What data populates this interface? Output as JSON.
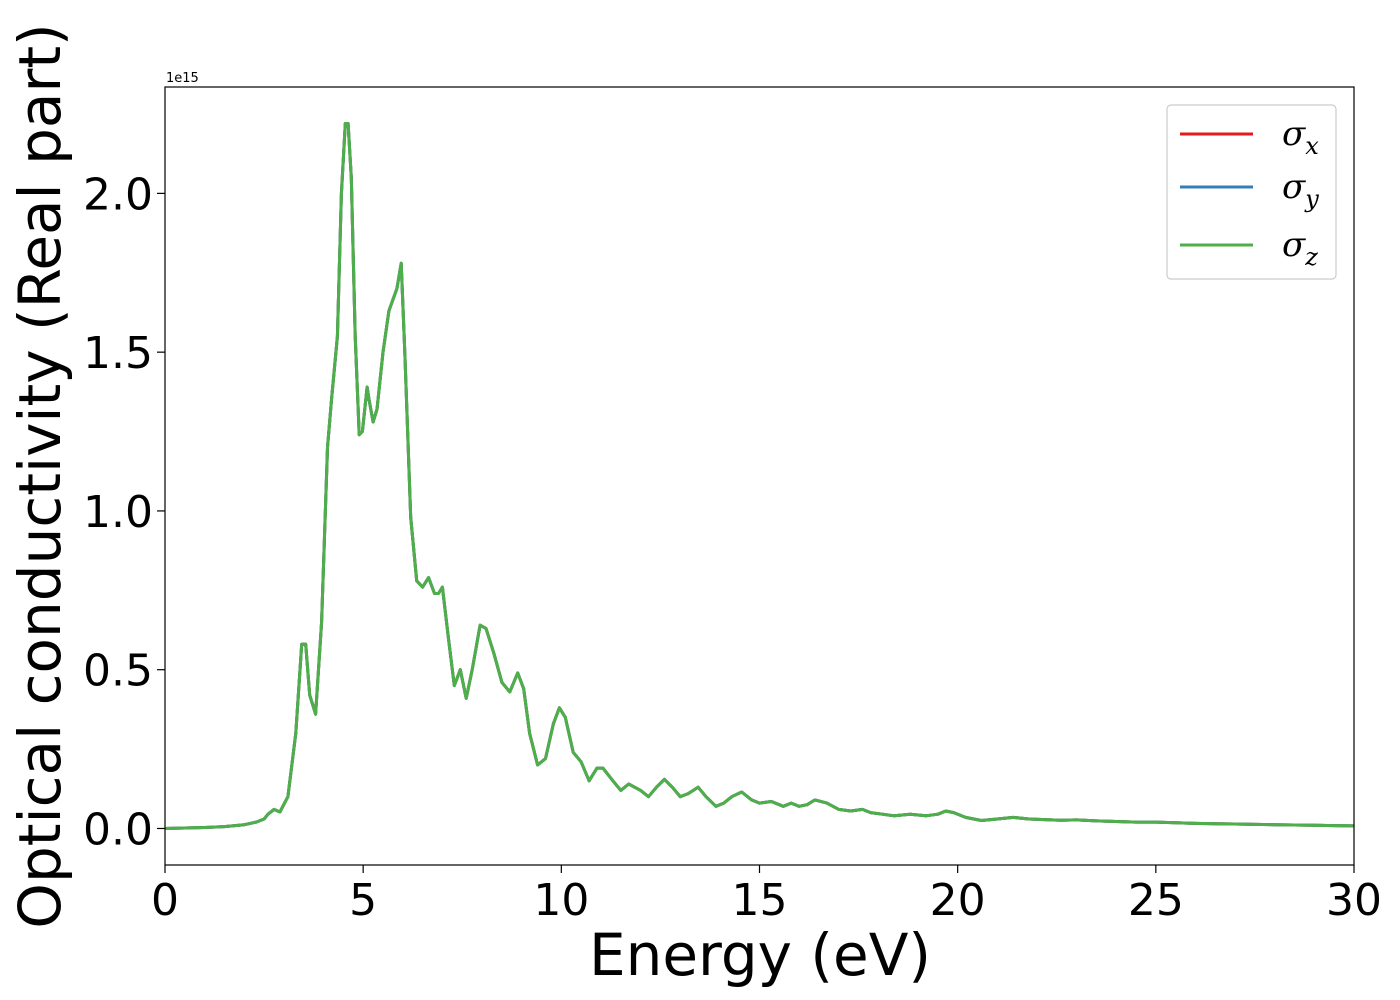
{
  "chart_data": {
    "type": "line",
    "xlabel": "Energy (eV)",
    "ylabel": "Optical conductivity (Real part)",
    "offset_text": "1e15",
    "xlim": [
      0,
      30
    ],
    "ylim": [
      -0.115,
      2.335
    ],
    "x_ticks": [
      0,
      5,
      10,
      15,
      20,
      25,
      30
    ],
    "x_tick_labels": [
      "0",
      "5",
      "10",
      "15",
      "20",
      "25",
      "30"
    ],
    "y_ticks": [
      0.0,
      0.5,
      1.0,
      1.5,
      2.0
    ],
    "y_tick_labels": [
      "0.0",
      "0.5",
      "1.0",
      "1.5",
      "2.0"
    ],
    "grid": false,
    "legend_position": "top-right",
    "x": [
      0,
      1,
      1.5,
      2,
      2.3,
      2.5,
      2.6,
      2.75,
      2.9,
      3.1,
      3.3,
      3.45,
      3.55,
      3.65,
      3.8,
      3.95,
      4.1,
      4.2,
      4.35,
      4.45,
      4.55,
      4.62,
      4.7,
      4.8,
      4.9,
      4.98,
      5.1,
      5.15,
      5.25,
      5.35,
      5.5,
      5.65,
      5.85,
      5.96,
      6.05,
      6.2,
      6.35,
      6.5,
      6.65,
      6.8,
      6.9,
      7.0,
      7.15,
      7.3,
      7.45,
      7.6,
      7.75,
      7.95,
      8.1,
      8.3,
      8.5,
      8.7,
      8.9,
      9.05,
      9.2,
      9.4,
      9.6,
      9.8,
      9.95,
      10.1,
      10.3,
      10.5,
      10.7,
      10.9,
      11.05,
      11.3,
      11.5,
      11.7,
      12.0,
      12.2,
      12.4,
      12.6,
      12.8,
      13.0,
      13.2,
      13.45,
      13.65,
      13.9,
      14.1,
      14.3,
      14.55,
      14.8,
      15.0,
      15.3,
      15.6,
      15.8,
      16.0,
      16.2,
      16.4,
      16.7,
      17.0,
      17.3,
      17.6,
      17.8,
      18.1,
      18.4,
      18.8,
      19.2,
      19.5,
      19.7,
      19.9,
      20.2,
      20.6,
      21.0,
      21.4,
      21.8,
      22.2,
      22.6,
      23.0,
      23.5,
      24.0,
      24.5,
      25.0,
      25.5,
      26.0,
      26.5,
      27.0,
      27.5,
      28.0,
      28.5,
      29.0,
      29.5,
      30.0
    ],
    "series": [
      {
        "name": "σx",
        "color": "#e41a1c",
        "y": [
          0.0,
          0.003,
          0.006,
          0.012,
          0.02,
          0.03,
          0.045,
          0.06,
          0.052,
          0.1,
          0.3,
          0.58,
          0.58,
          0.42,
          0.36,
          0.65,
          1.2,
          1.35,
          1.55,
          2.0,
          2.22,
          2.22,
          2.05,
          1.55,
          1.24,
          1.25,
          1.39,
          1.35,
          1.28,
          1.32,
          1.5,
          1.63,
          1.7,
          1.78,
          1.5,
          0.98,
          0.78,
          0.76,
          0.79,
          0.74,
          0.74,
          0.76,
          0.6,
          0.45,
          0.5,
          0.41,
          0.5,
          0.64,
          0.63,
          0.55,
          0.46,
          0.43,
          0.49,
          0.44,
          0.3,
          0.2,
          0.22,
          0.33,
          0.38,
          0.35,
          0.24,
          0.21,
          0.15,
          0.19,
          0.19,
          0.15,
          0.12,
          0.14,
          0.12,
          0.1,
          0.13,
          0.155,
          0.13,
          0.1,
          0.11,
          0.13,
          0.1,
          0.07,
          0.08,
          0.1,
          0.115,
          0.09,
          0.08,
          0.085,
          0.07,
          0.08,
          0.07,
          0.075,
          0.09,
          0.08,
          0.06,
          0.055,
          0.06,
          0.05,
          0.045,
          0.04,
          0.045,
          0.04,
          0.045,
          0.055,
          0.05,
          0.035,
          0.025,
          0.03,
          0.035,
          0.03,
          0.028,
          0.026,
          0.027,
          0.024,
          0.022,
          0.02,
          0.02,
          0.018,
          0.016,
          0.015,
          0.014,
          0.013,
          0.012,
          0.011,
          0.01,
          0.009,
          0.008
        ]
      },
      {
        "name": "σy",
        "color": "#377eb8",
        "y": [
          0.0,
          0.003,
          0.006,
          0.012,
          0.02,
          0.03,
          0.045,
          0.06,
          0.052,
          0.1,
          0.3,
          0.58,
          0.58,
          0.42,
          0.36,
          0.65,
          1.2,
          1.35,
          1.55,
          2.0,
          2.22,
          2.22,
          2.05,
          1.55,
          1.24,
          1.25,
          1.39,
          1.35,
          1.28,
          1.32,
          1.5,
          1.63,
          1.7,
          1.78,
          1.5,
          0.98,
          0.78,
          0.76,
          0.79,
          0.74,
          0.74,
          0.76,
          0.6,
          0.45,
          0.5,
          0.41,
          0.5,
          0.64,
          0.63,
          0.55,
          0.46,
          0.43,
          0.49,
          0.44,
          0.3,
          0.2,
          0.22,
          0.33,
          0.38,
          0.35,
          0.24,
          0.21,
          0.15,
          0.19,
          0.19,
          0.15,
          0.12,
          0.14,
          0.12,
          0.1,
          0.13,
          0.155,
          0.13,
          0.1,
          0.11,
          0.13,
          0.1,
          0.07,
          0.08,
          0.1,
          0.115,
          0.09,
          0.08,
          0.085,
          0.07,
          0.08,
          0.07,
          0.075,
          0.09,
          0.08,
          0.06,
          0.055,
          0.06,
          0.05,
          0.045,
          0.04,
          0.045,
          0.04,
          0.045,
          0.055,
          0.05,
          0.035,
          0.025,
          0.03,
          0.035,
          0.03,
          0.028,
          0.026,
          0.027,
          0.024,
          0.022,
          0.02,
          0.02,
          0.018,
          0.016,
          0.015,
          0.014,
          0.013,
          0.012,
          0.011,
          0.01,
          0.009,
          0.008
        ]
      },
      {
        "name": "σz",
        "color": "#4daf4a",
        "y": [
          0.0,
          0.003,
          0.006,
          0.012,
          0.02,
          0.03,
          0.045,
          0.06,
          0.052,
          0.1,
          0.3,
          0.58,
          0.58,
          0.42,
          0.36,
          0.65,
          1.2,
          1.35,
          1.55,
          2.0,
          2.22,
          2.22,
          2.05,
          1.55,
          1.24,
          1.25,
          1.39,
          1.35,
          1.28,
          1.32,
          1.5,
          1.63,
          1.7,
          1.78,
          1.5,
          0.98,
          0.78,
          0.76,
          0.79,
          0.74,
          0.74,
          0.76,
          0.6,
          0.45,
          0.5,
          0.41,
          0.5,
          0.64,
          0.63,
          0.55,
          0.46,
          0.43,
          0.49,
          0.44,
          0.3,
          0.2,
          0.22,
          0.33,
          0.38,
          0.35,
          0.24,
          0.21,
          0.15,
          0.19,
          0.19,
          0.15,
          0.12,
          0.14,
          0.12,
          0.1,
          0.13,
          0.155,
          0.13,
          0.1,
          0.11,
          0.13,
          0.1,
          0.07,
          0.08,
          0.1,
          0.115,
          0.09,
          0.08,
          0.085,
          0.07,
          0.08,
          0.07,
          0.075,
          0.09,
          0.08,
          0.06,
          0.055,
          0.06,
          0.05,
          0.045,
          0.04,
          0.045,
          0.04,
          0.045,
          0.055,
          0.05,
          0.035,
          0.025,
          0.03,
          0.035,
          0.03,
          0.028,
          0.026,
          0.027,
          0.024,
          0.022,
          0.02,
          0.02,
          0.018,
          0.016,
          0.015,
          0.014,
          0.013,
          0.012,
          0.011,
          0.01,
          0.009,
          0.008
        ]
      }
    ],
    "legend": [
      {
        "symbol": "σ",
        "subscript": "x",
        "color": "#e41a1c"
      },
      {
        "symbol": "σ",
        "subscript": "y",
        "color": "#377eb8"
      },
      {
        "symbol": "σ",
        "subscript": "z",
        "color": "#4daf4a"
      }
    ]
  }
}
